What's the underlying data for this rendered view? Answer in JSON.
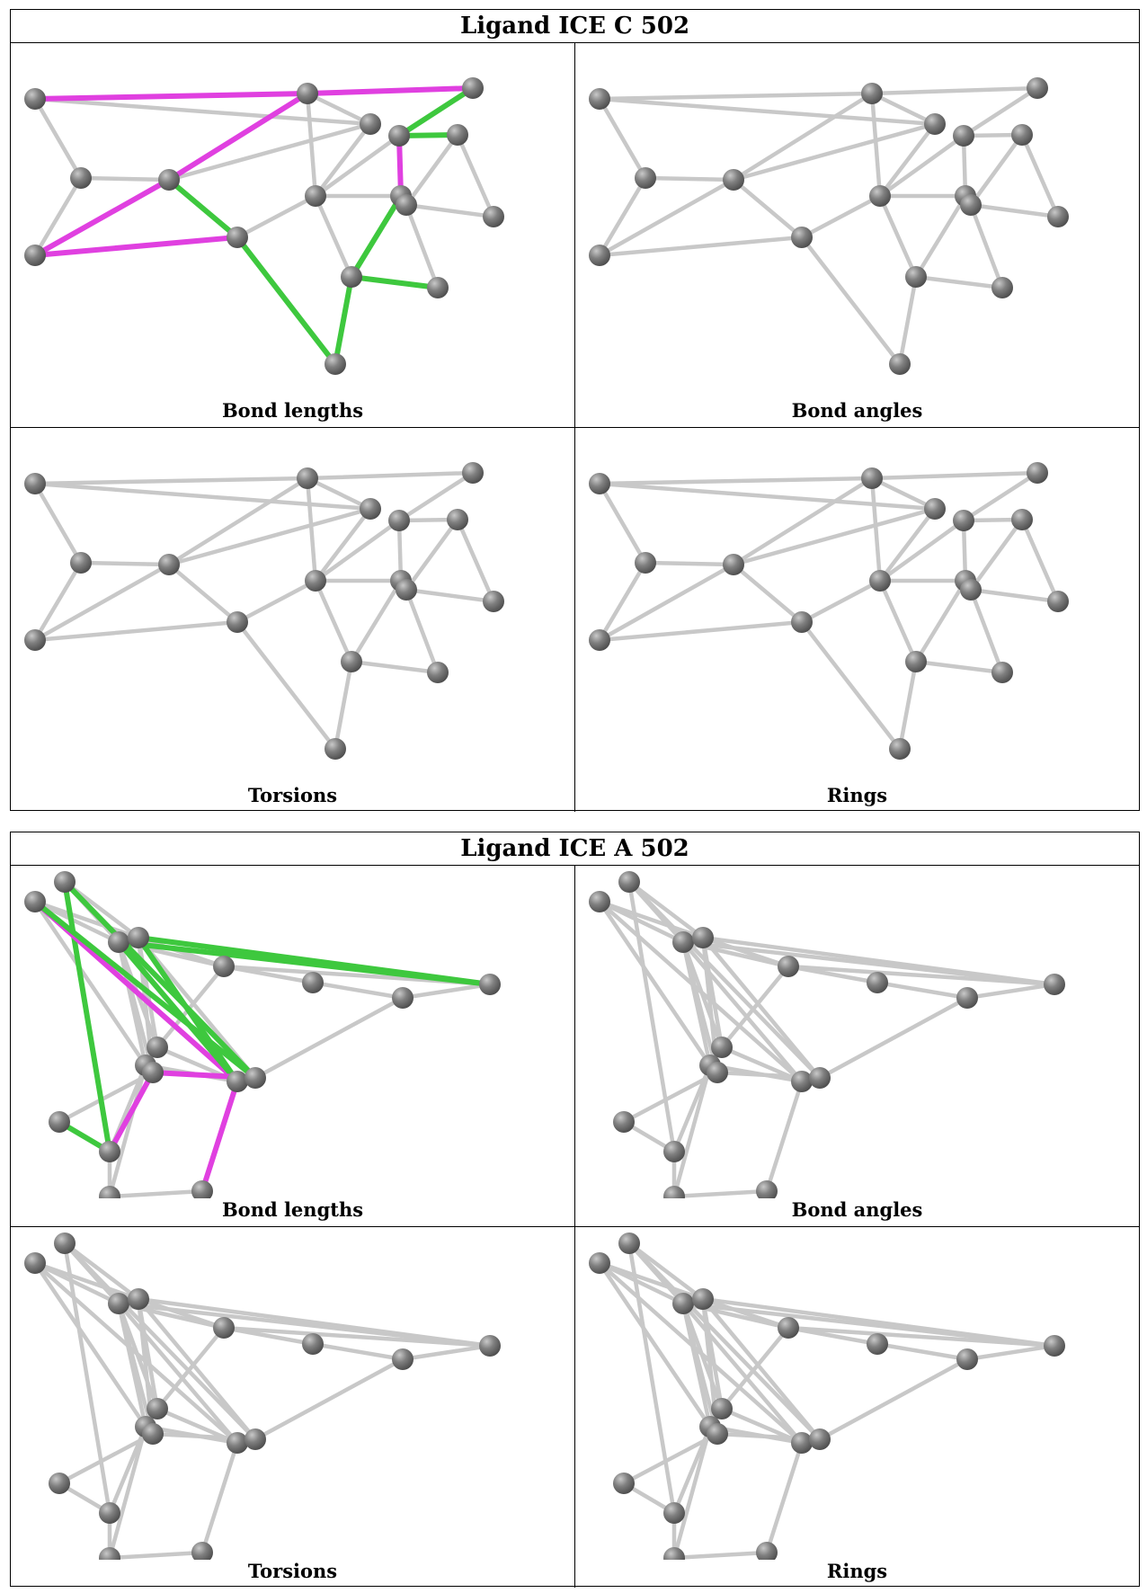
{
  "tables": [
    {
      "title": "Ligand ICE C 502",
      "panels": [
        {
          "label": "Bond lengths",
          "highlight": true
        },
        {
          "label": "Bond angles",
          "highlight": false
        },
        {
          "label": "Torsions",
          "highlight": false
        },
        {
          "label": "Rings",
          "highlight": false
        }
      ]
    },
    {
      "title": "Ligand ICE A 502",
      "panels": [
        {
          "label": "Bond lengths",
          "highlight": true
        },
        {
          "label": "Bond angles",
          "highlight": false
        },
        {
          "label": "Torsions",
          "highlight": false
        },
        {
          "label": "Rings",
          "highlight": false
        }
      ]
    }
  ],
  "colors": {
    "bond": "#c8c8c8",
    "atom": "#7a7a7a",
    "highlight_magenta": "#e040e0",
    "highlight_green": "#3ec83e"
  }
}
